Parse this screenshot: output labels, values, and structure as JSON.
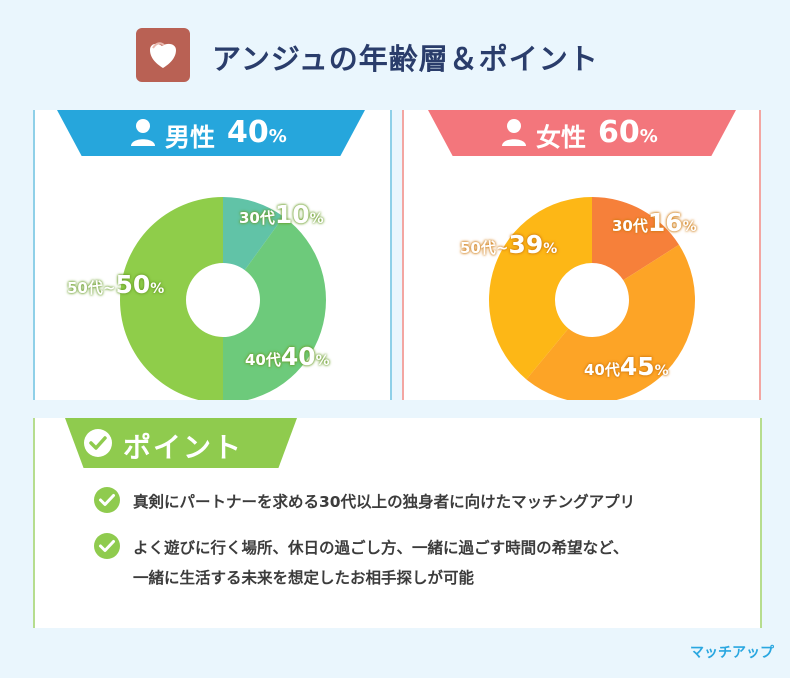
{
  "header": {
    "title": "アンジュの年齢層＆ポイント"
  },
  "chart_data": [
    {
      "type": "pie",
      "title": "男性 40%",
      "group_label": "男性",
      "group_value": "40",
      "categories": [
        "30代",
        "40代",
        "50代~"
      ],
      "values": [
        10,
        40,
        50
      ],
      "colors": [
        "#61c3a7",
        "#6dca7b",
        "#8fcd4a"
      ]
    },
    {
      "type": "pie",
      "title": "女性 60%",
      "group_label": "女性",
      "group_value": "60",
      "categories": [
        "30代",
        "40代",
        "50代~"
      ],
      "values": [
        16,
        45,
        39
      ],
      "colors": [
        "#f6803a",
        "#fda426",
        "#fdb716"
      ]
    }
  ],
  "labels": {
    "percent_sign": "%",
    "male": {
      "a30": "30代",
      "a40": "40代",
      "a50": "50代~",
      "v30": "10",
      "v40": "40",
      "v50": "50"
    },
    "female": {
      "a30": "30代",
      "a40": "40代",
      "a50": "50代~",
      "v30": "16",
      "v40": "45",
      "v50": "39"
    }
  },
  "points": {
    "title": "ポイント",
    "items": [
      {
        "line1": "真剣にパートナーを求める30代以上の独身者に向けたマッチングアプリ"
      },
      {
        "line1": "よく遊びに行く場所、休日の過ごし方、一緒に過ごす時間の希望など、",
        "line2": "一緒に生活する未来を想定したお相手探しが可能"
      }
    ]
  },
  "footer": {
    "brand": "マッチアップ"
  }
}
